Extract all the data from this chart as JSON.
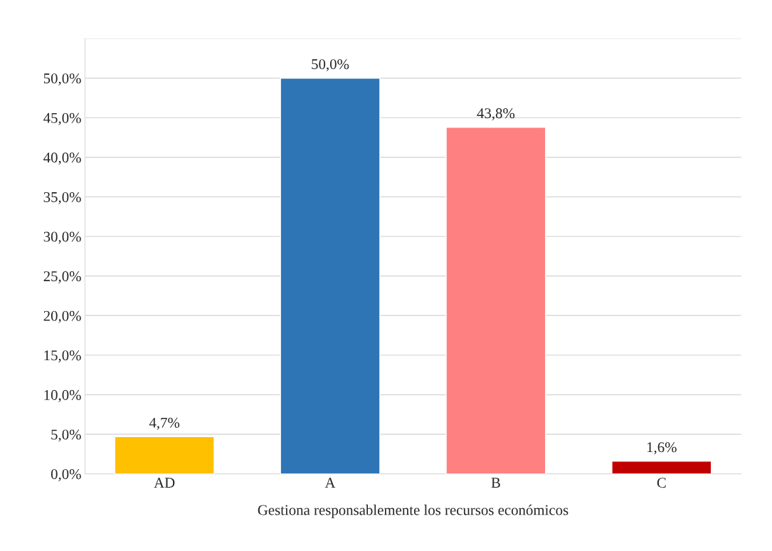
{
  "chart_data": {
    "type": "bar",
    "xlabel": "Gestiona responsablemente los recursos económicos",
    "categories": [
      "AD",
      "A",
      "B",
      "C"
    ],
    "values": [
      4.7,
      50.0,
      43.8,
      1.6
    ],
    "colors": [
      "#ffc000",
      "#2e75b6",
      "#ff8080",
      "#c00000"
    ],
    "value_labels": [
      "4,7%",
      "50,0%",
      "43,8%",
      "1,6%"
    ],
    "ylim": [
      0,
      55
    ],
    "yticks": [
      {
        "value": 0,
        "label": "0,0%"
      },
      {
        "value": 5,
        "label": "5,0%"
      },
      {
        "value": 10,
        "label": "10,0%"
      },
      {
        "value": 15,
        "label": "15,0%"
      },
      {
        "value": 20,
        "label": "20,0%"
      },
      {
        "value": 25,
        "label": "25,0%"
      },
      {
        "value": 30,
        "label": "30,0%"
      },
      {
        "value": 35,
        "label": "35,0%"
      },
      {
        "value": 40,
        "label": "40,0%"
      },
      {
        "value": 45,
        "label": "45,0%"
      },
      {
        "value": 50,
        "label": "50,0%"
      },
      {
        "value": 55,
        "label": null
      }
    ],
    "grid": "y"
  }
}
